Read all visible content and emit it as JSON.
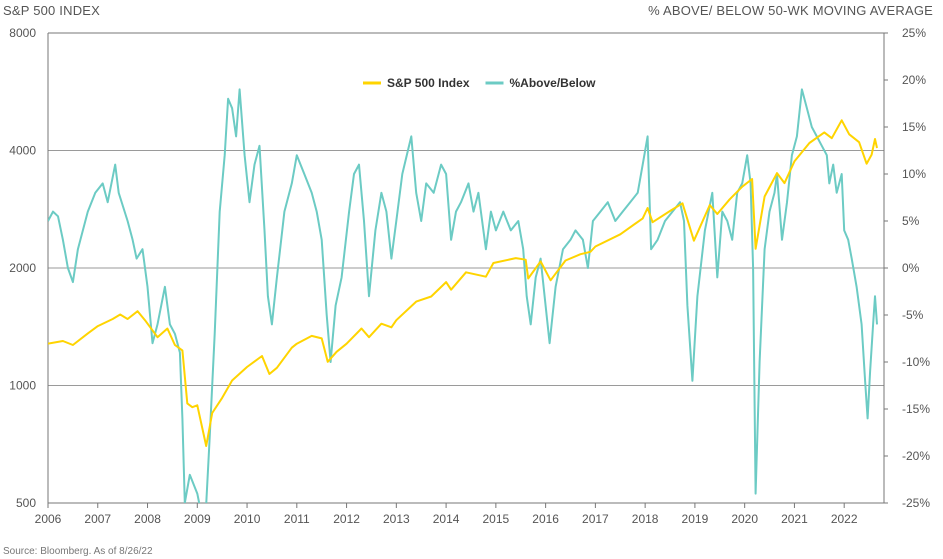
{
  "header": {
    "left_title": "S&P 500 INDEX",
    "right_title": "% ABOVE/ BELOW 50-WK MOVING AVERAGE"
  },
  "footer": {
    "source": "Source: Bloomberg. As of 8/26/22"
  },
  "colors": {
    "spx": "#FFD400",
    "pct": "#6CCBC4",
    "grid": "#9a9a9a",
    "axis": "#777777"
  },
  "chart_data": {
    "type": "line",
    "x_ticks": [
      "2006",
      "2007",
      "2008",
      "2009",
      "2010",
      "2011",
      "2012",
      "2013",
      "2014",
      "2015",
      "2016",
      "2017",
      "2018",
      "2019",
      "2020",
      "2021",
      "2022"
    ],
    "y_left": {
      "scale": "log",
      "ticks": [
        500,
        1000,
        2000,
        4000,
        8000
      ],
      "ylim": [
        500,
        8000
      ]
    },
    "y_right": {
      "ticks": [
        "25%",
        "20%",
        "15%",
        "10%",
        "5%",
        "0%",
        "-5%",
        "-10%",
        "-15%",
        "-20%",
        "-25%"
      ],
      "ylim": [
        -25,
        25
      ]
    },
    "series": [
      {
        "name": "S&P 500 Index",
        "axis": "left",
        "points": [
          [
            2006.0,
            1280
          ],
          [
            2006.3,
            1300
          ],
          [
            2006.5,
            1270
          ],
          [
            2006.8,
            1360
          ],
          [
            2007.0,
            1420
          ],
          [
            2007.3,
            1480
          ],
          [
            2007.45,
            1520
          ],
          [
            2007.6,
            1480
          ],
          [
            2007.8,
            1550
          ],
          [
            2007.95,
            1470
          ],
          [
            2008.2,
            1330
          ],
          [
            2008.4,
            1400
          ],
          [
            2008.55,
            1270
          ],
          [
            2008.7,
            1230
          ],
          [
            2008.8,
            900
          ],
          [
            2008.9,
            880
          ],
          [
            2009.0,
            890
          ],
          [
            2009.18,
            700
          ],
          [
            2009.3,
            850
          ],
          [
            2009.5,
            930
          ],
          [
            2009.7,
            1030
          ],
          [
            2010.0,
            1115
          ],
          [
            2010.3,
            1190
          ],
          [
            2010.45,
            1070
          ],
          [
            2010.6,
            1110
          ],
          [
            2010.9,
            1250
          ],
          [
            2011.0,
            1280
          ],
          [
            2011.3,
            1340
          ],
          [
            2011.5,
            1320
          ],
          [
            2011.62,
            1150
          ],
          [
            2011.8,
            1220
          ],
          [
            2012.0,
            1280
          ],
          [
            2012.3,
            1400
          ],
          [
            2012.45,
            1330
          ],
          [
            2012.7,
            1440
          ],
          [
            2012.9,
            1410
          ],
          [
            2013.0,
            1470
          ],
          [
            2013.4,
            1640
          ],
          [
            2013.7,
            1690
          ],
          [
            2014.0,
            1840
          ],
          [
            2014.1,
            1760
          ],
          [
            2014.4,
            1950
          ],
          [
            2014.8,
            1900
          ],
          [
            2014.95,
            2060
          ],
          [
            2015.4,
            2120
          ],
          [
            2015.6,
            2100
          ],
          [
            2015.65,
            1880
          ],
          [
            2015.9,
            2080
          ],
          [
            2016.1,
            1860
          ],
          [
            2016.4,
            2090
          ],
          [
            2016.7,
            2170
          ],
          [
            2016.9,
            2200
          ],
          [
            2017.0,
            2270
          ],
          [
            2017.5,
            2440
          ],
          [
            2017.95,
            2680
          ],
          [
            2018.05,
            2850
          ],
          [
            2018.15,
            2620
          ],
          [
            2018.5,
            2800
          ],
          [
            2018.75,
            2930
          ],
          [
            2018.98,
            2350
          ],
          [
            2019.3,
            2900
          ],
          [
            2019.45,
            2750
          ],
          [
            2019.7,
            3000
          ],
          [
            2019.95,
            3230
          ],
          [
            2020.15,
            3380
          ],
          [
            2020.22,
            2240
          ],
          [
            2020.4,
            3050
          ],
          [
            2020.65,
            3500
          ],
          [
            2020.8,
            3300
          ],
          [
            2021.0,
            3750
          ],
          [
            2021.3,
            4180
          ],
          [
            2021.6,
            4450
          ],
          [
            2021.75,
            4300
          ],
          [
            2021.95,
            4780
          ],
          [
            2022.1,
            4400
          ],
          [
            2022.3,
            4200
          ],
          [
            2022.45,
            3700
          ],
          [
            2022.55,
            3900
          ],
          [
            2022.62,
            4280
          ],
          [
            2022.66,
            4060
          ]
        ]
      },
      {
        "name": "%Above/Below",
        "axis": "right",
        "points": [
          [
            2006.0,
            5
          ],
          [
            2006.1,
            6
          ],
          [
            2006.2,
            5.5
          ],
          [
            2006.3,
            3
          ],
          [
            2006.4,
            0
          ],
          [
            2006.5,
            -1.5
          ],
          [
            2006.6,
            2
          ],
          [
            2006.8,
            6
          ],
          [
            2006.95,
            8
          ],
          [
            2007.1,
            9
          ],
          [
            2007.2,
            7
          ],
          [
            2007.35,
            11
          ],
          [
            2007.42,
            8
          ],
          [
            2007.6,
            5
          ],
          [
            2007.7,
            3
          ],
          [
            2007.78,
            1
          ],
          [
            2007.9,
            2
          ],
          [
            2008.0,
            -2
          ],
          [
            2008.1,
            -8
          ],
          [
            2008.2,
            -6
          ],
          [
            2008.35,
            -2
          ],
          [
            2008.45,
            -6
          ],
          [
            2008.55,
            -7
          ],
          [
            2008.65,
            -9
          ],
          [
            2008.7,
            -16
          ],
          [
            2008.75,
            -25
          ],
          [
            2008.85,
            -22
          ],
          [
            2009.0,
            -24
          ],
          [
            2009.15,
            -28
          ],
          [
            2009.25,
            -18
          ],
          [
            2009.35,
            -7
          ],
          [
            2009.45,
            6
          ],
          [
            2009.55,
            12
          ],
          [
            2009.62,
            18
          ],
          [
            2009.7,
            17
          ],
          [
            2009.78,
            14
          ],
          [
            2009.85,
            19
          ],
          [
            2009.95,
            12
          ],
          [
            2010.05,
            7
          ],
          [
            2010.15,
            11
          ],
          [
            2010.25,
            13
          ],
          [
            2010.35,
            4
          ],
          [
            2010.42,
            -3
          ],
          [
            2010.5,
            -6
          ],
          [
            2010.6,
            -1
          ],
          [
            2010.75,
            6
          ],
          [
            2010.9,
            9
          ],
          [
            2011.0,
            12
          ],
          [
            2011.15,
            10
          ],
          [
            2011.3,
            8
          ],
          [
            2011.4,
            6
          ],
          [
            2011.5,
            3
          ],
          [
            2011.6,
            -5
          ],
          [
            2011.68,
            -10
          ],
          [
            2011.78,
            -4
          ],
          [
            2011.9,
            -1
          ],
          [
            2012.05,
            6
          ],
          [
            2012.15,
            10
          ],
          [
            2012.25,
            11
          ],
          [
            2012.35,
            5
          ],
          [
            2012.45,
            -3
          ],
          [
            2012.58,
            4
          ],
          [
            2012.7,
            8
          ],
          [
            2012.8,
            6
          ],
          [
            2012.9,
            1
          ],
          [
            2013.0,
            5
          ],
          [
            2013.12,
            10
          ],
          [
            2013.3,
            14
          ],
          [
            2013.4,
            8
          ],
          [
            2013.5,
            5
          ],
          [
            2013.6,
            9
          ],
          [
            2013.75,
            8
          ],
          [
            2013.9,
            11
          ],
          [
            2014.0,
            10
          ],
          [
            2014.1,
            3
          ],
          [
            2014.2,
            6
          ],
          [
            2014.3,
            7
          ],
          [
            2014.45,
            9
          ],
          [
            2014.55,
            6
          ],
          [
            2014.65,
            8
          ],
          [
            2014.8,
            2
          ],
          [
            2014.9,
            6
          ],
          [
            2015.0,
            4
          ],
          [
            2015.15,
            6
          ],
          [
            2015.3,
            4
          ],
          [
            2015.45,
            5
          ],
          [
            2015.55,
            2
          ],
          [
            2015.62,
            -3
          ],
          [
            2015.7,
            -6
          ],
          [
            2015.8,
            -1
          ],
          [
            2015.9,
            1
          ],
          [
            2016.0,
            -4
          ],
          [
            2016.08,
            -8
          ],
          [
            2016.2,
            -2
          ],
          [
            2016.35,
            2
          ],
          [
            2016.5,
            3
          ],
          [
            2016.6,
            4
          ],
          [
            2016.75,
            3
          ],
          [
            2016.85,
            0
          ],
          [
            2016.95,
            5
          ],
          [
            2017.1,
            6
          ],
          [
            2017.25,
            7
          ],
          [
            2017.4,
            5
          ],
          [
            2017.55,
            6
          ],
          [
            2017.7,
            7
          ],
          [
            2017.85,
            8
          ],
          [
            2017.95,
            11
          ],
          [
            2018.05,
            14
          ],
          [
            2018.12,
            2
          ],
          [
            2018.25,
            3
          ],
          [
            2018.4,
            5
          ],
          [
            2018.55,
            6
          ],
          [
            2018.7,
            7
          ],
          [
            2018.78,
            5
          ],
          [
            2018.85,
            -4
          ],
          [
            2018.95,
            -12
          ],
          [
            2019.05,
            -3
          ],
          [
            2019.2,
            4
          ],
          [
            2019.35,
            8
          ],
          [
            2019.45,
            -1
          ],
          [
            2019.55,
            6
          ],
          [
            2019.65,
            5
          ],
          [
            2019.75,
            3
          ],
          [
            2019.85,
            8
          ],
          [
            2019.95,
            9
          ],
          [
            2020.05,
            12
          ],
          [
            2020.12,
            9
          ],
          [
            2020.17,
            0
          ],
          [
            2020.22,
            -24
          ],
          [
            2020.3,
            -10
          ],
          [
            2020.4,
            2
          ],
          [
            2020.5,
            6
          ],
          [
            2020.6,
            8
          ],
          [
            2020.65,
            10
          ],
          [
            2020.75,
            3
          ],
          [
            2020.85,
            7
          ],
          [
            2020.95,
            12
          ],
          [
            2021.05,
            14
          ],
          [
            2021.15,
            19
          ],
          [
            2021.25,
            17
          ],
          [
            2021.35,
            15
          ],
          [
            2021.45,
            14
          ],
          [
            2021.55,
            13
          ],
          [
            2021.65,
            12
          ],
          [
            2021.7,
            9
          ],
          [
            2021.78,
            11
          ],
          [
            2021.85,
            8
          ],
          [
            2021.95,
            10
          ],
          [
            2022.0,
            4
          ],
          [
            2022.08,
            3
          ],
          [
            2022.15,
            1
          ],
          [
            2022.25,
            -2
          ],
          [
            2022.35,
            -6
          ],
          [
            2022.42,
            -12
          ],
          [
            2022.47,
            -16
          ],
          [
            2022.52,
            -11
          ],
          [
            2022.58,
            -6
          ],
          [
            2022.62,
            -3
          ],
          [
            2022.66,
            -6
          ]
        ]
      }
    ],
    "legend": {
      "placement": "top-center"
    }
  }
}
